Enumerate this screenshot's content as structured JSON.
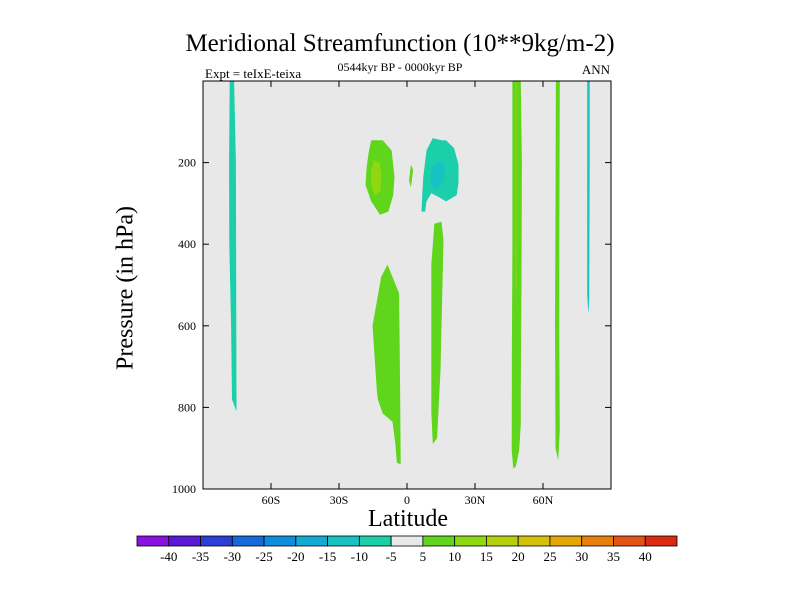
{
  "chart_data": {
    "type": "heatmap",
    "title": "Meridional Streamfunction (10**9kg/m-2)",
    "subtitle": "0544kyr BP - 0000kyr BP",
    "left_label": "Expt = teIxE-teixa",
    "right_label": "ANN",
    "xlabel": "Latitude",
    "ylabel": "Pressure (in hPa)",
    "xlim": [
      -90,
      90
    ],
    "ylim": [
      1000,
      0
    ],
    "x_ticks": [
      {
        "value": -60,
        "label": "60S"
      },
      {
        "value": -30,
        "label": "30S"
      },
      {
        "value": 0,
        "label": "0"
      },
      {
        "value": 30,
        "label": "30N"
      },
      {
        "value": 60,
        "label": "60N"
      }
    ],
    "y_ticks": [
      {
        "value": 200,
        "label": "200"
      },
      {
        "value": 400,
        "label": "400"
      },
      {
        "value": 600,
        "label": "600"
      },
      {
        "value": 800,
        "label": "800"
      },
      {
        "value": 1000,
        "label": "1000"
      }
    ],
    "background_color": "#e8e8e8",
    "colorbar": {
      "labels": [
        "-40",
        "-35",
        "-30",
        "-25",
        "-20",
        "-15",
        "-10",
        "-5",
        "5",
        "10",
        "15",
        "20",
        "25",
        "30",
        "35",
        "40"
      ],
      "colors": [
        "#8c10e0",
        "#5a19d6",
        "#2d3ed4",
        "#1569d8",
        "#0d8ddc",
        "#14a9d2",
        "#19c2c2",
        "#1acfa9",
        "#e8e8e8",
        "#5fd61c",
        "#8fd70f",
        "#b6d10a",
        "#d4c206",
        "#e5a605",
        "#e77f0d",
        "#e35316",
        "#db2a12"
      ]
    },
    "regions": [
      {
        "name": "sh-polar-band",
        "value": -7,
        "color": "#1acfa9",
        "polygon": [
          [
            -80.3,
            0
          ],
          [
            -78.2,
            0
          ],
          [
            -78.5,
            200
          ],
          [
            -78.4,
            400
          ],
          [
            -77.6,
            600
          ],
          [
            -77.2,
            780
          ],
          [
            -75.2,
            810
          ],
          [
            -75.5,
            200
          ],
          [
            -76.3,
            0
          ]
        ]
      },
      {
        "name": "sh-upper-cell",
        "value": 7,
        "color": "#5fd61c",
        "polygon": [
          [
            -15.8,
            145
          ],
          [
            -10.7,
            145
          ],
          [
            -6.8,
            170
          ],
          [
            -5.5,
            235
          ],
          [
            -6.1,
            280
          ],
          [
            -8.2,
            320
          ],
          [
            -11.9,
            328
          ],
          [
            -15.8,
            295
          ],
          [
            -18.3,
            255
          ],
          [
            -17.8,
            210
          ],
          [
            -16.9,
            175
          ]
        ]
      },
      {
        "name": "sh-upper-core",
        "value": 12,
        "color": "#8fd70f",
        "polygon": [
          [
            -14.6,
            195
          ],
          [
            -12.1,
            200
          ],
          [
            -11.2,
            230
          ],
          [
            -11.7,
            270
          ],
          [
            -14.2,
            280
          ],
          [
            -15.8,
            255
          ],
          [
            -15.8,
            220
          ]
        ]
      },
      {
        "name": "equatorial-sliver",
        "value": 7,
        "color": "#5fd61c",
        "polygon": [
          [
            1.7,
            205
          ],
          [
            2.7,
            218
          ],
          [
            2.0,
            250
          ],
          [
            1.7,
            260
          ],
          [
            0.9,
            245
          ],
          [
            1.4,
            220
          ]
        ]
      },
      {
        "name": "nh-upper-cell",
        "value": -7,
        "color": "#1acfa9",
        "polygon": [
          [
            7.2,
            235
          ],
          [
            8.6,
            170
          ],
          [
            11.4,
            140
          ],
          [
            15.2,
            145
          ],
          [
            17.2,
            145
          ],
          [
            20.8,
            165
          ],
          [
            22.7,
            205
          ],
          [
            22.7,
            250
          ],
          [
            21.9,
            280
          ],
          [
            17.2,
            295
          ],
          [
            14.2,
            285
          ],
          [
            10.7,
            275
          ],
          [
            8.6,
            295
          ],
          [
            8.0,
            320
          ],
          [
            6.4,
            320
          ],
          [
            6.8,
            270
          ]
        ]
      },
      {
        "name": "nh-upper-core",
        "value": -12,
        "color": "#19c2c2",
        "polygon": [
          [
            11.4,
            205
          ],
          [
            15.2,
            195
          ],
          [
            16.9,
            215
          ],
          [
            16.1,
            245
          ],
          [
            13.3,
            265
          ],
          [
            10.7,
            260
          ],
          [
            10.3,
            230
          ]
        ]
      },
      {
        "name": "sh-lower-cell",
        "value": 7,
        "color": "#5fd61c",
        "polygon": [
          [
            -8.6,
            450
          ],
          [
            -11.4,
            480
          ],
          [
            -15.2,
            600
          ],
          [
            -13.3,
            760
          ],
          [
            -12.9,
            780
          ],
          [
            -10.7,
            815
          ],
          [
            -6.4,
            835
          ],
          [
            -5.1,
            890
          ],
          [
            -4.5,
            935
          ],
          [
            -2.8,
            940
          ],
          [
            -3.0,
            780
          ],
          [
            -3.5,
            520
          ]
        ]
      },
      {
        "name": "nh-lower-cell",
        "value": 7,
        "color": "#5fd61c",
        "polygon": [
          [
            12.1,
            350
          ],
          [
            10.7,
            450
          ],
          [
            10.7,
            810
          ],
          [
            11.4,
            890
          ],
          [
            13.3,
            875
          ],
          [
            14.8,
            710
          ],
          [
            16.1,
            390
          ],
          [
            15.2,
            345
          ]
        ]
      },
      {
        "name": "nh-midlat-band",
        "value": 8,
        "color": "#5fd61c",
        "polygon": [
          [
            46.5,
            0
          ],
          [
            50.2,
            0
          ],
          [
            50.7,
            200
          ],
          [
            50.5,
            500
          ],
          [
            50.2,
            760
          ],
          [
            50.2,
            840
          ],
          [
            49.5,
            905
          ],
          [
            48.0,
            945
          ],
          [
            46.9,
            950
          ],
          [
            46.2,
            905
          ],
          [
            46.3,
            650
          ],
          [
            46.5,
            400
          ]
        ]
      },
      {
        "name": "nh-midlat-core",
        "value": 12,
        "color": "#8fd70f",
        "polygon": [
          [
            47.9,
            0
          ],
          [
            48.4,
            0
          ],
          [
            48.4,
            250
          ],
          [
            48.3,
            510
          ],
          [
            47.9,
            510
          ],
          [
            47.9,
            250
          ]
        ]
      },
      {
        "name": "nh-subpolar-band",
        "value": 7,
        "color": "#5fd61c",
        "polygon": [
          [
            65.7,
            0
          ],
          [
            67.4,
            0
          ],
          [
            67.2,
            400
          ],
          [
            67.2,
            640
          ],
          [
            67.4,
            855
          ],
          [
            66.7,
            930
          ],
          [
            65.5,
            900
          ],
          [
            65.3,
            600
          ],
          [
            65.5,
            300
          ]
        ]
      },
      {
        "name": "nh-polar-band",
        "value": -10,
        "color": "#19c2c2",
        "polygon": [
          [
            79.5,
            0
          ],
          [
            80.6,
            0
          ],
          [
            80.6,
            200
          ],
          [
            80.4,
            540
          ],
          [
            80.0,
            570
          ],
          [
            79.5,
            520
          ],
          [
            79.5,
            200
          ]
        ]
      }
    ]
  }
}
